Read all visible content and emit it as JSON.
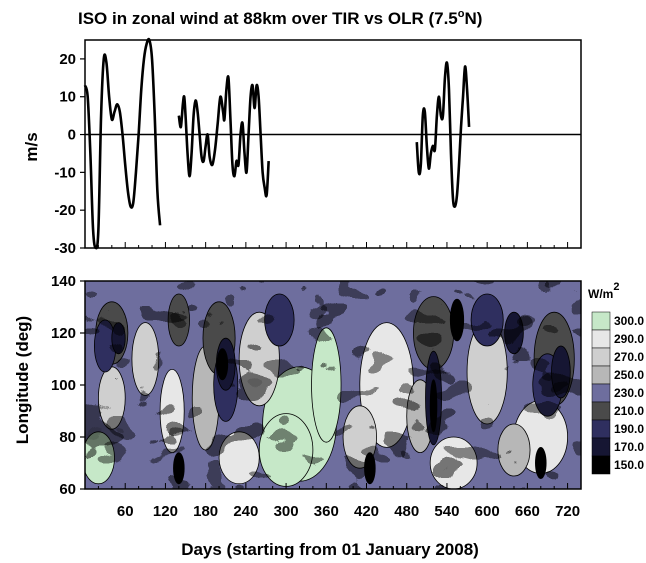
{
  "chart_data": [
    {
      "type": "line",
      "title": "ISO in zonal wind at 88km over TIR vs OLR (7.5°N)",
      "title_main": "ISO in zonal wind at 88km over TIR vs OLR (7.5",
      "title_sup": "o",
      "title_end": "N)",
      "ylabel": "m/s",
      "xlim": [
        0,
        740
      ],
      "ylim": [
        -30,
        25
      ],
      "yticks": [
        -30,
        -20,
        -10,
        0,
        10,
        20
      ],
      "zero_line": true,
      "series": [
        {
          "segments": [
            [
              [
                0,
                13
              ],
              [
                4,
                10
              ],
              [
                8,
                -5
              ],
              [
                12,
                -25
              ],
              [
                16,
                -30
              ],
              [
                20,
                -25
              ],
              [
                24,
                5
              ],
              [
                28,
                20
              ],
              [
                32,
                19
              ],
              [
                36,
                10
              ],
              [
                40,
                4
              ],
              [
                44,
                6
              ],
              [
                48,
                8
              ],
              [
                52,
                6
              ],
              [
                56,
                0
              ],
              [
                60,
                -8
              ],
              [
                64,
                -15
              ],
              [
                68,
                -19
              ],
              [
                72,
                -18
              ],
              [
                76,
                -10
              ],
              [
                80,
                0
              ],
              [
                84,
                12
              ],
              [
                88,
                20
              ],
              [
                92,
                24
              ],
              [
                96,
                25
              ],
              [
                100,
                20
              ],
              [
                104,
                5
              ],
              [
                108,
                -15
              ],
              [
                112,
                -24
              ]
            ],
            [
              [
                140,
                5
              ],
              [
                143,
                2
              ],
              [
                146,
                8
              ],
              [
                148,
                10
              ],
              [
                150,
                5
              ],
              [
                153,
                -5
              ],
              [
                156,
                -11
              ],
              [
                159,
                -5
              ],
              [
                162,
                5
              ],
              [
                165,
                9
              ],
              [
                168,
                6
              ],
              [
                171,
                0
              ],
              [
                174,
                -6
              ],
              [
                177,
                -7
              ],
              [
                180,
                -3
              ],
              [
                183,
                0
              ],
              [
                186,
                -6
              ],
              [
                190,
                -8
              ],
              [
                194,
                -4
              ],
              [
                198,
                3
              ],
              [
                202,
                10
              ],
              [
                206,
                6
              ],
              [
                208,
                4
              ],
              [
                211,
                12
              ],
              [
                214,
                15
              ],
              [
                217,
                4
              ],
              [
                220,
                -8
              ],
              [
                223,
                -11
              ],
              [
                226,
                -7
              ],
              [
                229,
                -8
              ],
              [
                232,
                0
              ],
              [
                235,
                3
              ],
              [
                238,
                -5
              ],
              [
                241,
                -10
              ],
              [
                244,
                0
              ],
              [
                247,
                10
              ],
              [
                250,
                13
              ],
              [
                253,
                7
              ],
              [
                256,
                13
              ],
              [
                259,
                10
              ],
              [
                262,
                0
              ],
              [
                265,
                -10
              ],
              [
                268,
                -14
              ],
              [
                271,
                -16
              ],
              [
                274,
                -7
              ]
            ],
            [
              [
                495,
                -2
              ],
              [
                498,
                -10
              ],
              [
                501,
                -8
              ],
              [
                504,
                5
              ],
              [
                507,
                6
              ],
              [
                510,
                -3
              ],
              [
                513,
                -9
              ],
              [
                516,
                -5
              ],
              [
                519,
                -3
              ],
              [
                522,
                -4
              ],
              [
                525,
                5
              ],
              [
                528,
                10
              ],
              [
                531,
                5
              ],
              [
                534,
                5
              ],
              [
                537,
                15
              ],
              [
                540,
                19
              ],
              [
                543,
                12
              ],
              [
                546,
                -5
              ],
              [
                549,
                -17
              ],
              [
                552,
                -19
              ],
              [
                555,
                -16
              ],
              [
                558,
                -8
              ],
              [
                561,
                2
              ],
              [
                564,
                10
              ],
              [
                567,
                18
              ],
              [
                570,
                12
              ],
              [
                573,
                2
              ]
            ]
          ]
        }
      ]
    },
    {
      "type": "heatmap",
      "subtype": "filled-contour",
      "xlabel": "Days (starting from 01 January 2008)",
      "ylabel": "Longitude (deg)",
      "xlim": [
        0,
        740
      ],
      "ylim": [
        60,
        140
      ],
      "xticks": [
        60,
        120,
        180,
        240,
        300,
        360,
        420,
        480,
        540,
        600,
        660,
        720
      ],
      "yticks": [
        60,
        80,
        100,
        120,
        140
      ],
      "colorbar": {
        "unit": "W/m",
        "unit_sup": "2",
        "levels": [
          "300.0",
          "290.0",
          "270.0",
          "250.0",
          "230.0",
          "210.0",
          "190.0",
          "170.0",
          "150.0"
        ],
        "colors": [
          "#c6e8c8",
          "#e7e7e7",
          "#cfcfcf",
          "#b7b7b7",
          "#6e6e9e",
          "#4a4a4a",
          "#2f2f5f",
          "#161633",
          "#000000"
        ]
      },
      "olr_pattern": "intraseasonal bands, high OLR (green) near 250-430 days at 70-110 deg, low OLR (black) clusters near 40, 200, 520 and 700 days"
    }
  ]
}
